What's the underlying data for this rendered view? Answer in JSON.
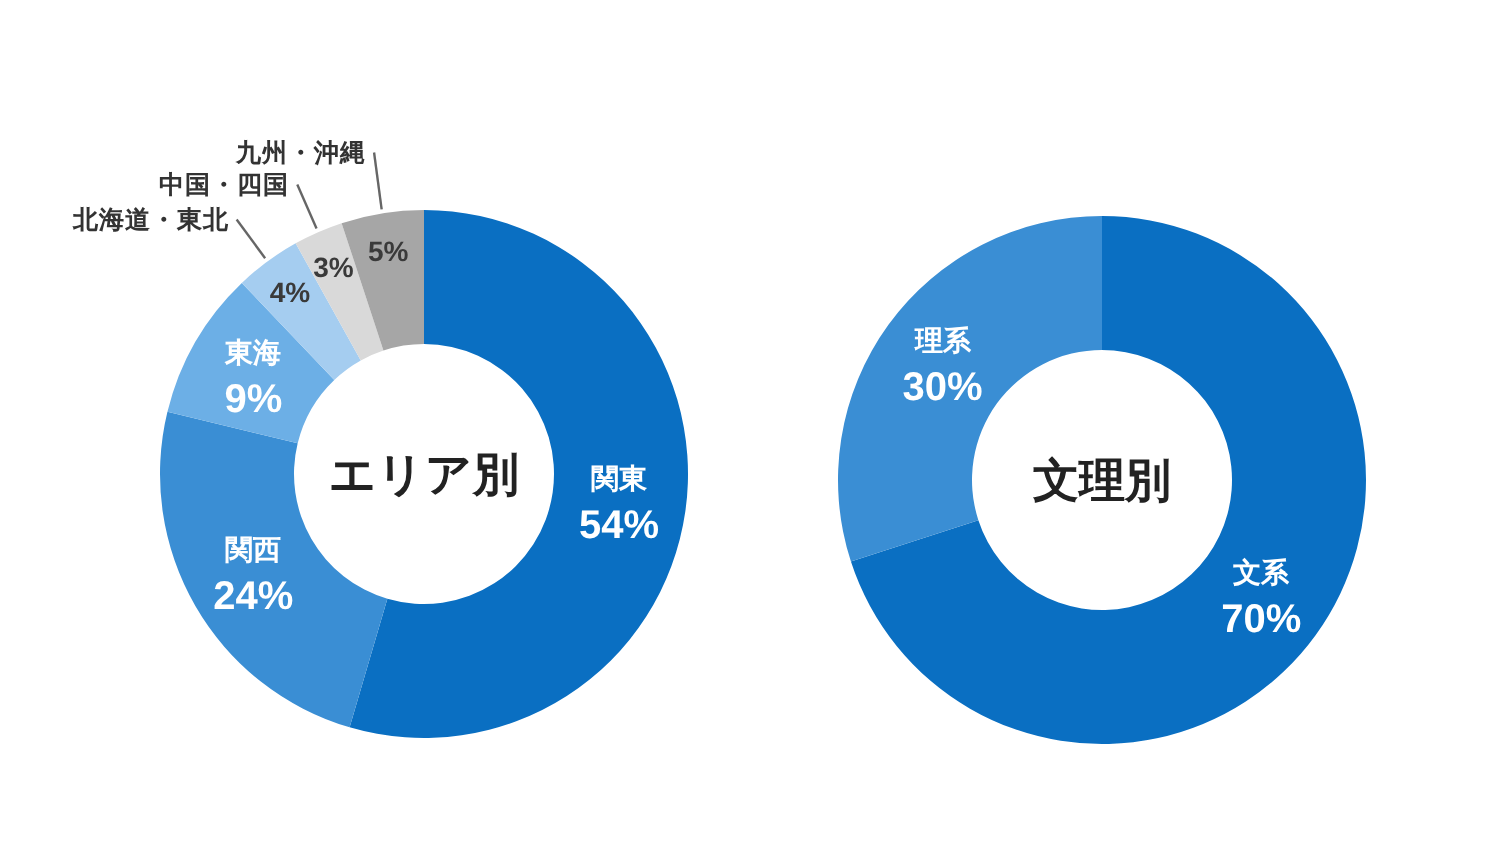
{
  "chart_data": [
    {
      "type": "donut",
      "title": "エリア別",
      "categories": [
        "関東",
        "関西",
        "東海",
        "北海道・東北",
        "中国・四国",
        "九州・沖縄"
      ],
      "values": [
        54,
        24,
        9,
        4,
        3,
        5
      ],
      "colors": [
        "#0a6fc2",
        "#3a8ed4",
        "#6cafe6",
        "#a5cdf0",
        "#d9d9d9",
        "#a6a6a6"
      ],
      "value_labels": [
        "54%",
        "24%",
        "9%",
        "4%",
        "3%",
        "5%"
      ]
    },
    {
      "type": "donut",
      "title": "文理別",
      "categories": [
        "文系",
        "理系"
      ],
      "values": [
        70,
        30
      ],
      "colors": [
        "#0a6fc2",
        "#3a8ed4"
      ],
      "value_labels": [
        "70%",
        "30%"
      ]
    }
  ]
}
